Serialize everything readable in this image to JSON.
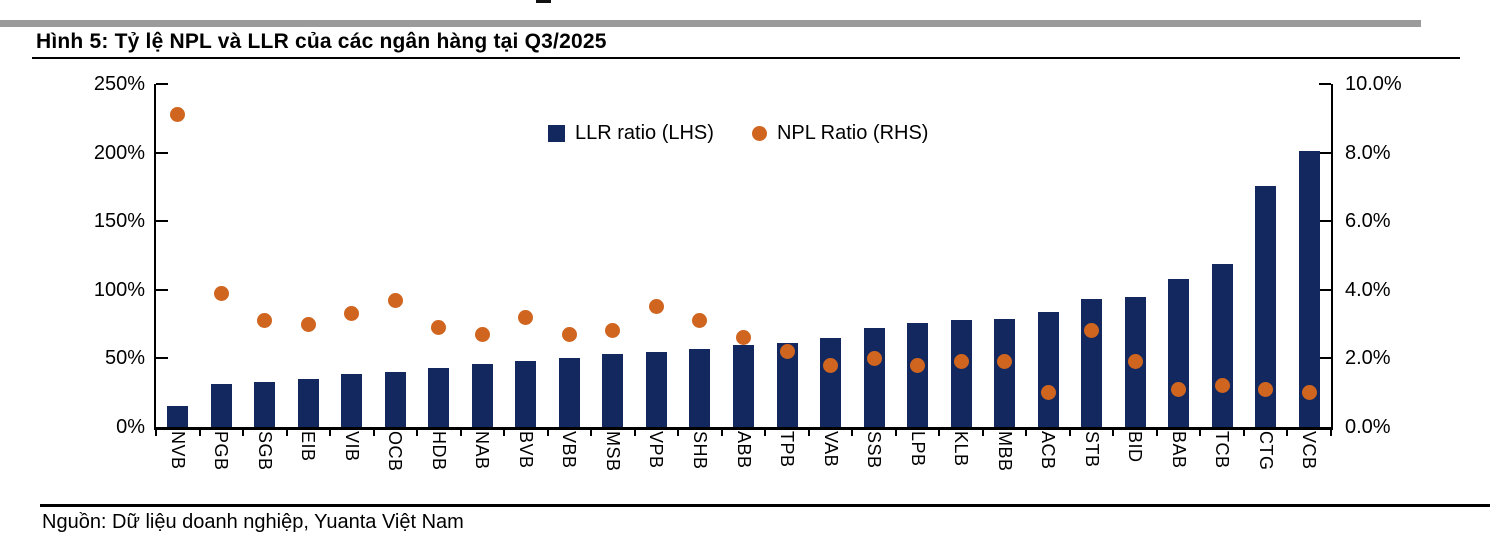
{
  "page": {
    "title": "Hình 5: Tỷ lệ NPL và LLR của các ngân hàng tại Q3/2025",
    "source": "Nguồn: Dữ liệu doanh nghiệp, Yuanta Việt Nam"
  },
  "colors": {
    "bar": "#12285f",
    "dot": "#cf651f",
    "axis": "#000000",
    "top_bar_gray": "#9b9b9b"
  },
  "chart_data": {
    "type": "bar",
    "subtype": "combo bar + scatter, dual axis",
    "title": "Hình 5: Tỷ lệ NPL và LLR của các ngân hàng tại Q3/2025",
    "categories": [
      "NVB",
      "PGB",
      "SGB",
      "EIB",
      "VIB",
      "OCB",
      "HDB",
      "NAB",
      "BVB",
      "VBB",
      "MSB",
      "VPB",
      "SHB",
      "ABB",
      "TPB",
      "VAB",
      "SSB",
      "LPB",
      "KLB",
      "MBB",
      "ACB",
      "STB",
      "BID",
      "BAB",
      "TCB",
      "CTG",
      "VCB"
    ],
    "series": [
      {
        "name": "LLR ratio (LHS)",
        "type": "bar",
        "axis": "left",
        "unit": "%",
        "values": [
          15,
          31,
          33,
          35,
          39,
          40,
          43,
          46,
          48,
          50,
          53,
          55,
          57,
          60,
          61,
          65,
          72,
          76,
          78,
          79,
          84,
          93,
          95,
          108,
          119,
          176,
          201
        ]
      },
      {
        "name": "NPL Ratio (RHS)",
        "type": "scatter",
        "axis": "right",
        "unit": "%",
        "values": [
          9.1,
          3.9,
          3.1,
          3.0,
          3.3,
          3.7,
          2.9,
          2.7,
          3.2,
          2.7,
          2.8,
          3.5,
          3.1,
          2.6,
          2.2,
          1.8,
          2.0,
          1.8,
          1.9,
          1.9,
          1.0,
          2.8,
          1.9,
          1.1,
          1.2,
          1.1,
          1.0
        ]
      }
    ],
    "left_axis": {
      "min": 0,
      "max": 250,
      "tick_values": [
        0,
        50,
        100,
        150,
        200,
        250
      ],
      "tick_labels": [
        "0%",
        "50%",
        "100%",
        "150%",
        "200%",
        "250%"
      ]
    },
    "right_axis": {
      "min": 0,
      "max": 10,
      "tick_values": [
        0,
        2,
        4,
        6,
        8,
        10
      ],
      "tick_labels": [
        "0.0%",
        "2.0%",
        "4.0%",
        "6.0%",
        "8.0%",
        "10.0%"
      ]
    },
    "grid": "off",
    "legend_position": "inside top center"
  }
}
